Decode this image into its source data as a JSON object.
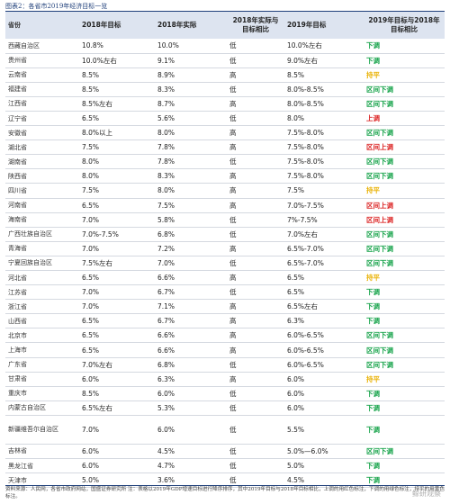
{
  "caption": "图表2：各省市2019年经济目标一览",
  "columns": [
    "省份",
    "2018年目标",
    "2018年实际",
    "2018年实际与目标相比",
    "2019年目标",
    "2019年目标与2018年目标相比"
  ],
  "rows": [
    {
      "province": "西藏自治区",
      "t2018": "10.8%",
      "a2018": "10.0%",
      "cmp": "低",
      "t2019": "10.0%左右",
      "signal": "下调",
      "sig": "down"
    },
    {
      "province": "贵州省",
      "t2018": "10.0%左右",
      "a2018": "9.1%",
      "cmp": "低",
      "t2019": "9.0%左右",
      "signal": "下调",
      "sig": "down"
    },
    {
      "province": "云南省",
      "t2018": "8.5%",
      "a2018": "8.9%",
      "cmp": "高",
      "t2019": "8.5%",
      "signal": "持平",
      "sig": "flat"
    },
    {
      "province": "福建省",
      "t2018": "8.5%",
      "a2018": "8.3%",
      "cmp": "低",
      "t2019": "8.0%-8.5%",
      "signal": "区间下调",
      "sig": "down"
    },
    {
      "province": "江西省",
      "t2018": "8.5%左右",
      "a2018": "8.7%",
      "cmp": "高",
      "t2019": "8.0%-8.5%",
      "signal": "区间下调",
      "sig": "down"
    },
    {
      "province": "辽宁省",
      "t2018": "6.5%",
      "a2018": "5.6%",
      "cmp": "低",
      "t2019": "8.0%",
      "signal": "上调",
      "sig": "up"
    },
    {
      "province": "安徽省",
      "t2018": "8.0%以上",
      "a2018": "8.0%",
      "cmp": "高",
      "t2019": "7.5%-8.0%",
      "signal": "区间下调",
      "sig": "down"
    },
    {
      "province": "湖北省",
      "t2018": "7.5%",
      "a2018": "7.8%",
      "cmp": "高",
      "t2019": "7.5%-8.0%",
      "signal": "区间上调",
      "sig": "up"
    },
    {
      "province": "湖南省",
      "t2018": "8.0%",
      "a2018": "7.8%",
      "cmp": "低",
      "t2019": "7.5%-8.0%",
      "signal": "区间下调",
      "sig": "down"
    },
    {
      "province": "陕西省",
      "t2018": "8.0%",
      "a2018": "8.3%",
      "cmp": "高",
      "t2019": "7.5%-8.0%",
      "signal": "区间下调",
      "sig": "down"
    },
    {
      "province": "四川省",
      "t2018": "7.5%",
      "a2018": "8.0%",
      "cmp": "高",
      "t2019": "7.5%",
      "signal": "持平",
      "sig": "flat"
    },
    {
      "province": "河南省",
      "t2018": "6.5%",
      "a2018": "7.5%",
      "cmp": "高",
      "t2019": "7.0%-7.5%",
      "signal": "区间上调",
      "sig": "up"
    },
    {
      "province": "海南省",
      "t2018": "7.0%",
      "a2018": "5.8%",
      "cmp": "低",
      "t2019": "7%-7.5%",
      "signal": "区间上调",
      "sig": "up"
    },
    {
      "province": "广西壮族自治区",
      "t2018": "7.0%-7.5%",
      "a2018": "6.8%",
      "cmp": "低",
      "t2019": "7.0%左右",
      "signal": "区间下调",
      "sig": "down"
    },
    {
      "province": "青海省",
      "t2018": "7.0%",
      "a2018": "7.2%",
      "cmp": "高",
      "t2019": "6.5%-7.0%",
      "signal": "区间下调",
      "sig": "down"
    },
    {
      "province": "宁夏回族自治区",
      "t2018": "7.5%左右",
      "a2018": "7.0%",
      "cmp": "低",
      "t2019": "6.5%-7.0%",
      "signal": "区间下调",
      "sig": "down"
    },
    {
      "province": "河北省",
      "t2018": "6.5%",
      "a2018": "6.6%",
      "cmp": "高",
      "t2019": "6.5%",
      "signal": "持平",
      "sig": "flat"
    },
    {
      "province": "江苏省",
      "t2018": "7.0%",
      "a2018": "6.7%",
      "cmp": "低",
      "t2019": "6.5%",
      "signal": "下调",
      "sig": "down"
    },
    {
      "province": "浙江省",
      "t2018": "7.0%",
      "a2018": "7.1%",
      "cmp": "高",
      "t2019": "6.5%左右",
      "signal": "下调",
      "sig": "down"
    },
    {
      "province": "山西省",
      "t2018": "6.5%",
      "a2018": "6.7%",
      "cmp": "高",
      "t2019": "6.3%",
      "signal": "下调",
      "sig": "down"
    },
    {
      "province": "北京市",
      "t2018": "6.5%",
      "a2018": "6.6%",
      "cmp": "高",
      "t2019": "6.0%-6.5%",
      "signal": "区间下调",
      "sig": "down"
    },
    {
      "province": "上海市",
      "t2018": "6.5%",
      "a2018": "6.6%",
      "cmp": "高",
      "t2019": "6.0%-6.5%",
      "signal": "区间下调",
      "sig": "down"
    },
    {
      "province": "广东省",
      "t2018": "7.0%左右",
      "a2018": "6.8%",
      "cmp": "低",
      "t2019": "6.0%-6.5%",
      "signal": "区间下调",
      "sig": "down"
    },
    {
      "province": "甘肃省",
      "t2018": "6.0%",
      "a2018": "6.3%",
      "cmp": "高",
      "t2019": "6.0%",
      "signal": "持平",
      "sig": "flat"
    },
    {
      "province": "重庆市",
      "t2018": "8.5%",
      "a2018": "6.0%",
      "cmp": "低",
      "t2019": "6.0%",
      "signal": "下调",
      "sig": "down"
    },
    {
      "province": "内蒙古自治区",
      "t2018": "6.5%左右",
      "a2018": "5.3%",
      "cmp": "低",
      "t2019": "6.0%",
      "signal": "下调",
      "sig": "down"
    },
    {
      "province": "新疆维吾尔自治区",
      "t2018": "7.0%",
      "a2018": "6.0%",
      "cmp": "低",
      "t2019": "5.5%",
      "signal": "下调",
      "sig": "down",
      "tall": true
    },
    {
      "province": "吉林省",
      "t2018": "6.0%",
      "a2018": "4.5%",
      "cmp": "低",
      "t2019": "5.0%—6.0%",
      "signal": "区间下调",
      "sig": "down"
    },
    {
      "province": "黑龙江省",
      "t2018": "6.0%",
      "a2018": "4.7%",
      "cmp": "低",
      "t2019": "5.0%",
      "signal": "下调",
      "sig": "down"
    },
    {
      "province": "天津市",
      "t2018": "5.0%",
      "a2018": "3.6%",
      "cmp": "低",
      "t2019": "4.5%",
      "signal": "下调",
      "sig": "down"
    }
  ],
  "note": "资料来源：人民网，各省市政府网站，国盛证券研究所 注：表格以2019年GDP增速目标进行降序排序，其中2019年目标与2018年目标相比，上调的用红色标注，下调的用绿色标注，持平的用黄色标注。",
  "watermark": "鲸研观察"
}
